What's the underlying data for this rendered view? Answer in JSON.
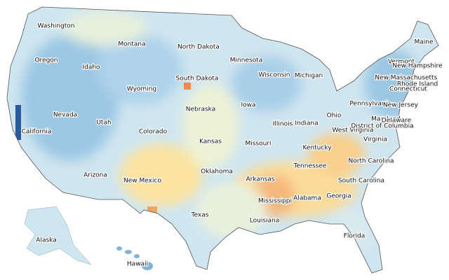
{
  "labels": [
    "Washington",
    "Oregon",
    "Idaho",
    "Montana",
    "Wyoming",
    "Nevada",
    "Utah",
    "Colorado",
    "California",
    "Arizona",
    "New Mexico",
    "North Dakota",
    "South Dakota",
    "Nebraska",
    "Kansas",
    "Oklahoma",
    "Texas",
    "Minnesota",
    "Iowa",
    "Missouri",
    "Arkansas",
    "Louisiana",
    "Wisconsin",
    "Illinois",
    "Michigan",
    "Indiana",
    "Ohio",
    "Kentucky",
    "Tennessee",
    "Mississippi",
    "Alabama",
    "Georgia",
    "Florida",
    "South Carolina",
    "North Carolina",
    "Virginia",
    "West Virginia",
    "Pennsylvania",
    "Maryland",
    "Delaware",
    "New Jersey",
    "District of Columbia",
    "New York",
    "Connecticut",
    "Rhode Island",
    "Massachusetts",
    "Vermont",
    "New Hampshire",
    "Maine",
    "Alaska",
    "Hawaii"
  ]
}
